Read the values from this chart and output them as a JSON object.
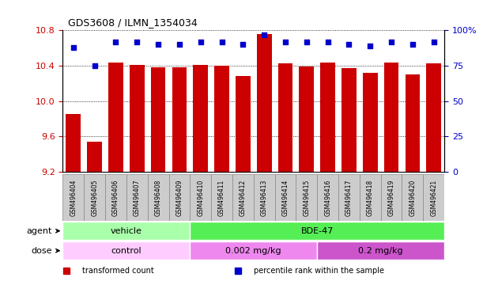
{
  "title": "GDS3608 / ILMN_1354034",
  "samples": [
    "GSM496404",
    "GSM496405",
    "GSM496406",
    "GSM496407",
    "GSM496408",
    "GSM496409",
    "GSM496410",
    "GSM496411",
    "GSM496412",
    "GSM496413",
    "GSM496414",
    "GSM496415",
    "GSM496416",
    "GSM496417",
    "GSM496418",
    "GSM496419",
    "GSM496420",
    "GSM496421"
  ],
  "transformed_count": [
    9.85,
    9.54,
    10.44,
    10.41,
    10.38,
    10.38,
    10.41,
    10.4,
    10.28,
    10.76,
    10.43,
    10.39,
    10.44,
    10.37,
    10.32,
    10.44,
    10.3,
    10.43
  ],
  "percentile_rank": [
    88,
    75,
    92,
    92,
    90,
    90,
    92,
    92,
    90,
    97,
    92,
    92,
    92,
    90,
    89,
    92,
    90,
    92
  ],
  "ylim_left": [
    9.2,
    10.8
  ],
  "ylim_right": [
    0,
    100
  ],
  "yticks_left": [
    9.2,
    9.6,
    10.0,
    10.4,
    10.8
  ],
  "yticks_right": [
    0,
    25,
    50,
    75,
    100
  ],
  "bar_color": "#cc0000",
  "dot_color": "#0000cc",
  "agent_groups": [
    {
      "label": "vehicle",
      "start": 0,
      "end": 6,
      "color": "#aaffaa"
    },
    {
      "label": "BDE-47",
      "start": 6,
      "end": 18,
      "color": "#55ee55"
    }
  ],
  "dose_groups": [
    {
      "label": "control",
      "start": 0,
      "end": 6,
      "color": "#ffccff"
    },
    {
      "label": "0.002 mg/kg",
      "start": 6,
      "end": 12,
      "color": "#ee88ee"
    },
    {
      "label": "0.2 mg/kg",
      "start": 12,
      "end": 18,
      "color": "#cc55cc"
    }
  ],
  "legend_items": [
    {
      "label": "transformed count",
      "color": "#cc0000",
      "marker": "s"
    },
    {
      "label": "percentile rank within the sample",
      "color": "#0000cc",
      "marker": "s"
    }
  ],
  "grid_color": "black",
  "grid_style": "dotted",
  "tick_color_left": "#cc0000",
  "tick_color_right": "#0000cc",
  "bar_bottom": 9.2,
  "agent_label": "agent",
  "dose_label": "dose",
  "sample_box_color": "#cccccc",
  "sample_box_edge": "#888888"
}
